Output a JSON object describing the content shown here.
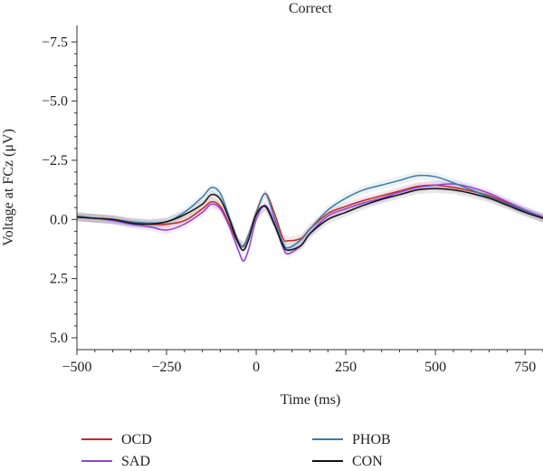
{
  "chart_data": {
    "type": "line",
    "title": "Correct",
    "xlabel": "Time (ms)",
    "ylabel": "Voltage at FCz (μV)",
    "xlim": [
      -500,
      800
    ],
    "ylim": [
      5.5,
      -8.2
    ],
    "y_inverted": true,
    "grid": false,
    "legend_placement": "bottom",
    "x_ticks": [
      -500,
      -250,
      0,
      250,
      500,
      750
    ],
    "x_tick_labels": [
      "−500",
      "−250",
      "0",
      "250",
      "500",
      "750"
    ],
    "y_ticks": [
      -7.5,
      -5.0,
      -2.5,
      0.0,
      2.5,
      5.0
    ],
    "y_tick_labels": [
      "−7.5",
      "−5.0",
      "−2.5",
      "0.0",
      "2.5",
      "5.0"
    ],
    "x": [
      -500,
      -450,
      -400,
      -350,
      -300,
      -250,
      -200,
      -150,
      -125,
      -100,
      -75,
      -50,
      -35,
      -20,
      0,
      25,
      50,
      75,
      90,
      125,
      150,
      200,
      250,
      300,
      350,
      400,
      450,
      500,
      550,
      600,
      650,
      700,
      750,
      800
    ],
    "series": [
      {
        "name": "OCD",
        "color": "#c62828",
        "values": [
          -0.1,
          -0.05,
          0.0,
          0.1,
          0.2,
          0.2,
          0.05,
          -0.45,
          -0.75,
          -0.55,
          0.2,
          1.0,
          1.1,
          0.6,
          -0.3,
          -1.1,
          -0.3,
          0.8,
          0.9,
          0.8,
          0.4,
          -0.25,
          -0.55,
          -0.8,
          -1.0,
          -1.2,
          -1.4,
          -1.45,
          -1.35,
          -1.2,
          -1.0,
          -0.7,
          -0.35,
          -0.05
        ]
      },
      {
        "name": "SAD",
        "color": "#8e44d6",
        "values": [
          -0.1,
          -0.05,
          0.05,
          0.2,
          0.3,
          0.45,
          0.2,
          -0.3,
          -0.65,
          -0.45,
          0.3,
          1.3,
          1.75,
          1.2,
          0.0,
          -0.6,
          0.1,
          1.2,
          1.45,
          1.1,
          0.6,
          -0.15,
          -0.45,
          -0.7,
          -0.9,
          -1.15,
          -1.35,
          -1.45,
          -1.5,
          -1.35,
          -1.1,
          -0.75,
          -0.4,
          -0.1
        ]
      },
      {
        "name": "PHOB",
        "color": "#3a7ca5",
        "values": [
          -0.15,
          -0.05,
          0.0,
          0.1,
          0.15,
          0.1,
          -0.3,
          -0.95,
          -1.35,
          -1.1,
          -0.1,
          0.9,
          1.15,
          0.6,
          -0.25,
          -1.1,
          -0.1,
          1.0,
          1.2,
          0.85,
          0.4,
          -0.4,
          -0.9,
          -1.25,
          -1.45,
          -1.65,
          -1.85,
          -1.8,
          -1.55,
          -1.25,
          -0.95,
          -0.65,
          -0.35,
          -0.05
        ]
      },
      {
        "name": "CON",
        "color": "#111111",
        "values": [
          -0.1,
          -0.05,
          0.0,
          0.15,
          0.2,
          0.1,
          -0.2,
          -0.65,
          -1.05,
          -0.85,
          0.0,
          1.0,
          1.3,
          0.8,
          -0.2,
          -0.55,
          0.2,
          1.1,
          1.3,
          1.1,
          0.6,
          0.0,
          -0.3,
          -0.6,
          -0.85,
          -1.05,
          -1.25,
          -1.3,
          -1.25,
          -1.1,
          -0.9,
          -0.6,
          -0.3,
          -0.05
        ]
      }
    ]
  }
}
